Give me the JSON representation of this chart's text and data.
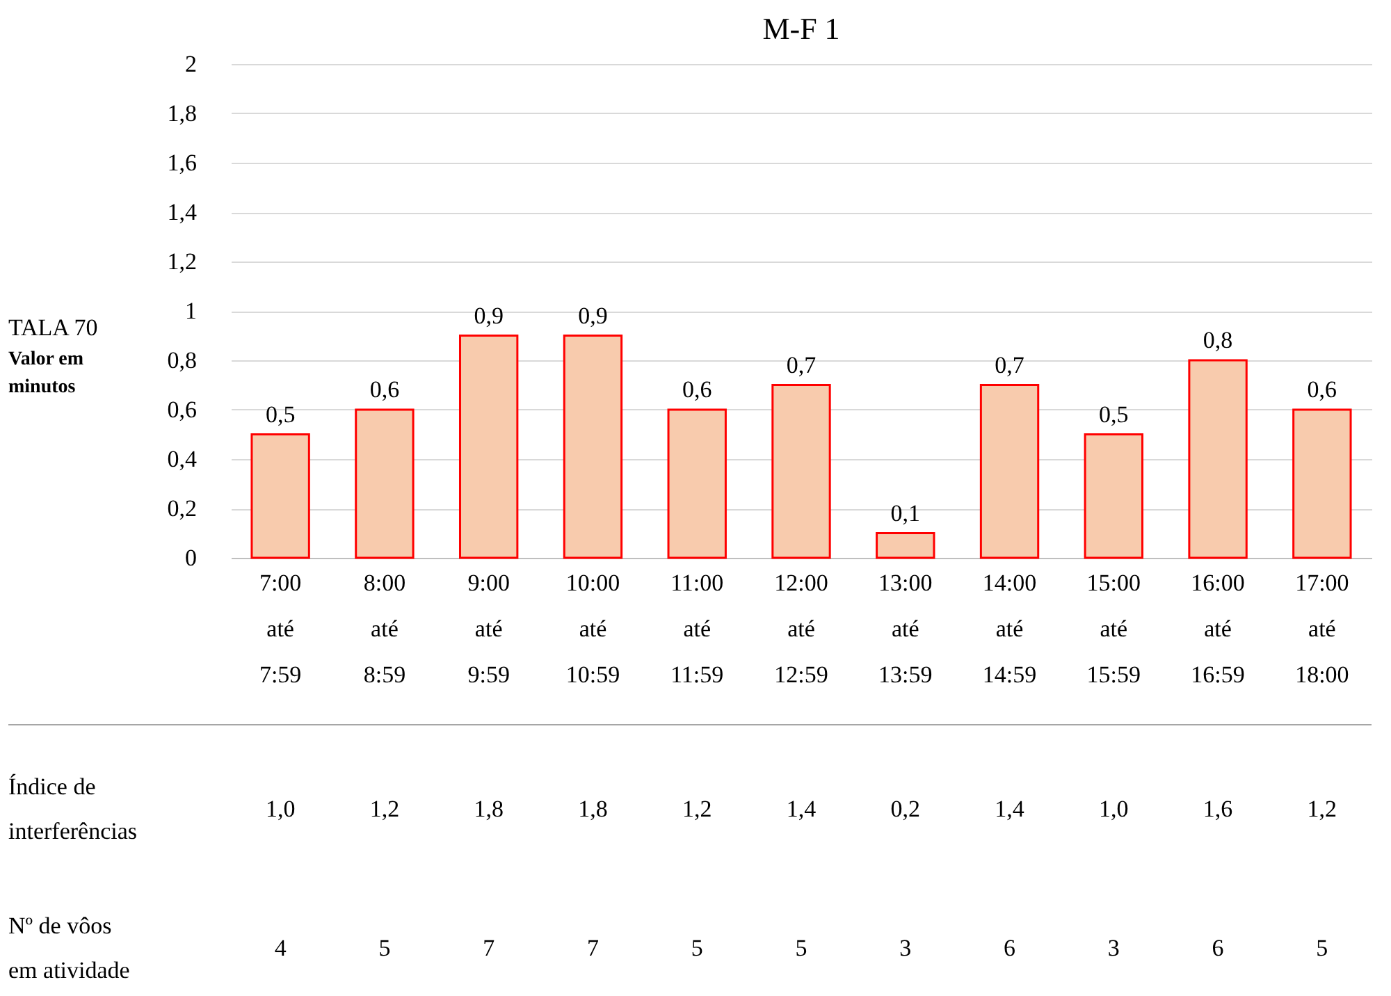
{
  "chart_data": {
    "type": "bar",
    "title": "M-F 1",
    "ylabel": "TALA 70\nValor em\nminutos",
    "categories": [
      "7:00\naté\n7:59",
      "8:00\naté\n8:59",
      "9:00\naté\n9:59",
      "10:00\naté\n10:59",
      "11:00\naté\n11:59",
      "12:00\naté\n12:59",
      "13:00\naté\n13:59",
      "14:00\naté\n14:59",
      "15:00\naté\n15:59",
      "16:00\naté\n16:59",
      "17:00\naté\n18:00"
    ],
    "values": [
      0.5,
      0.6,
      0.9,
      0.9,
      0.6,
      0.7,
      0.1,
      0.7,
      0.5,
      0.8,
      0.6
    ],
    "value_labels": [
      "0,5",
      "0,6",
      "0,9",
      "0,9",
      "0,6",
      "0,7",
      "0,1",
      "0,7",
      "0,5",
      "0,8",
      "0,6"
    ],
    "color": "#f8cbad",
    "ylim": [
      0,
      2
    ],
    "yticks": [
      0,
      {
        "value": 0.2,
        "label": "0,2"
      },
      {
        "value": 0.4,
        "label": "0,4"
      },
      {
        "value": 0.6,
        "label": "0,6"
      },
      {
        "value": 0.8,
        "label": "0,8"
      },
      1,
      {
        "value": 1.2,
        "label": "1,2"
      },
      {
        "value": 1.4,
        "label": "1,4"
      },
      {
        "value": 1.6,
        "label": "1,6"
      },
      {
        "value": 1.8,
        "label": "1,8"
      },
      2
    ],
    "grid": "y",
    "annotations": [
      "Índice de\ninterferências",
      "1,0",
      "1,2",
      "1,8",
      "1,8",
      "1,2",
      "1,4",
      "0,2",
      "1,4",
      "1,0",
      "1,6",
      "1,2",
      "Nº de vôos\nem atividade",
      "4",
      "5",
      "7",
      "7",
      "5",
      "5",
      "3",
      "6",
      "3",
      "6",
      "5"
    ]
  }
}
